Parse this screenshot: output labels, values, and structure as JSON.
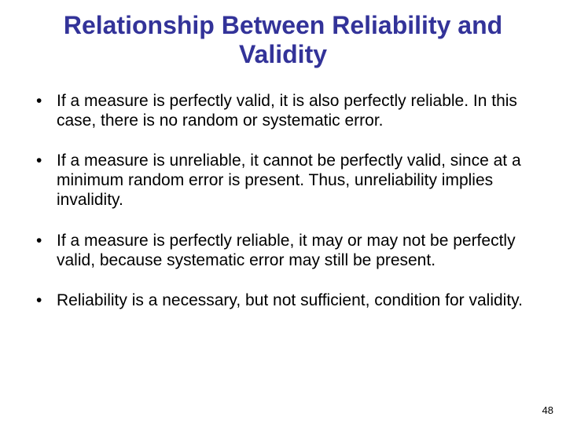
{
  "title": "Relationship Between Reliability and Validity",
  "bullets": [
    "If a measure is perfectly valid, it is also perfectly reliable.  In this case, there is no random or systematic error.",
    "If a measure is unreliable, it cannot be perfectly valid, since at a minimum random error is present.  Thus, unreliability implies invalidity.",
    "If a measure is perfectly reliable, it may or may not be perfectly valid, because systematic error may still be present.",
    "Reliability is a necessary, but not sufficient, condition for validity."
  ],
  "page_number": "48",
  "colors": {
    "title_color": "#333399",
    "text_color": "#000000",
    "background_color": "#ffffff"
  },
  "typography": {
    "title_fontsize": 32,
    "body_fontsize": 21,
    "page_number_fontsize": 13,
    "font_family": "Arial"
  }
}
